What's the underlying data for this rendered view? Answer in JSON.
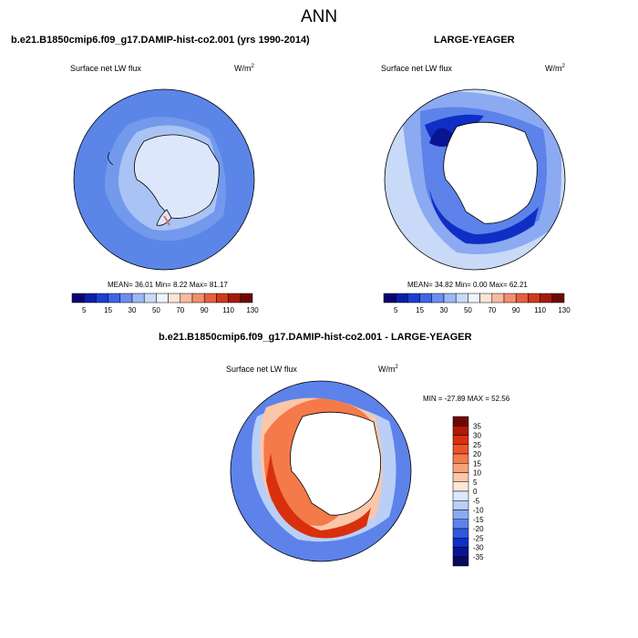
{
  "title": "ANN",
  "panel_left": {
    "title": "b.e21.B1850cmip6.f09_g17.DAMIP-hist-co2.001 (yrs 1990-2014)",
    "variable": "Surface net LW flux",
    "units_base": "W/m",
    "units_exp": "2",
    "stats": "MEAN=  36.01  Min=   8.22  Max=  81.17"
  },
  "panel_right": {
    "title": "LARGE-YEAGER",
    "variable": "Surface net LW flux",
    "units_base": "W/m",
    "units_exp": "2",
    "stats": "MEAN=  34.82  Min=   0.00  Max=  62.21"
  },
  "panel_diff": {
    "title": "b.e21.B1850cmip6.f09_g17.DAMIP-hist-co2.001 - LARGE-YEAGER",
    "variable": "Surface net LW flux",
    "units_base": "W/m",
    "units_exp": "2",
    "stats": "MIN = -27.89 MAX =  52.56"
  },
  "colorbar_abs": {
    "labels": [
      "5",
      "15",
      "30",
      "50",
      "70",
      "90",
      "110",
      "130"
    ],
    "colors": [
      "#08066e",
      "#0a1fa8",
      "#1c3ed6",
      "#3d66e6",
      "#6b8ef0",
      "#9cb8f5",
      "#c8daf8",
      "#eef4fc",
      "#fde4d6",
      "#f7bba0",
      "#f28e6e",
      "#e5603e",
      "#d0391c",
      "#a51a0c",
      "#6e0804"
    ]
  },
  "colorbar_diff": {
    "labels": [
      "35",
      "30",
      "25",
      "20",
      "15",
      "10",
      "5",
      "0",
      "-5",
      "-10",
      "-15",
      "-20",
      "-25",
      "-30",
      "-35"
    ],
    "colors": [
      "#6e0804",
      "#b01808",
      "#d8300e",
      "#ee5228",
      "#f57a4a",
      "#f9a27a",
      "#fcc7a8",
      "#fde8d8",
      "#dce8fb",
      "#b9cff7",
      "#8caaf1",
      "#5d82ea",
      "#2e58e0",
      "#0f2fc4",
      "#0a1493",
      "#050a5c"
    ]
  }
}
